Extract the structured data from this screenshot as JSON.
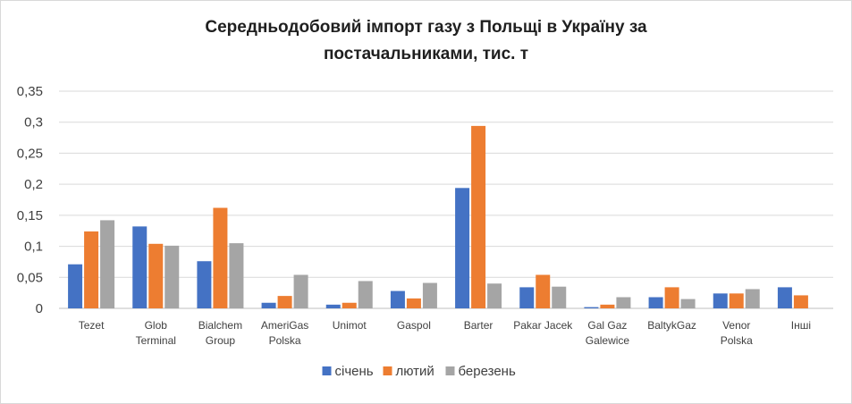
{
  "chart_data": {
    "type": "bar",
    "title_lines": [
      "Середньодобовий імпорт газу з Польщі в Україну за",
      "постачальниками, тис. т"
    ],
    "xlabel": "",
    "ylabel": "",
    "ylim": [
      0,
      0.35
    ],
    "yticks": [
      "0",
      "0,05",
      "0,1",
      "0,15",
      "0,2",
      "0,25",
      "0,3",
      "0,35"
    ],
    "ytick_values": [
      0,
      0.05,
      0.1,
      0.15,
      0.2,
      0.25,
      0.3,
      0.35
    ],
    "grid": true,
    "legend_position": "bottom",
    "categories": [
      [
        "Tezet"
      ],
      [
        "Glob",
        "Terminal"
      ],
      [
        "Bialchem",
        "Group"
      ],
      [
        "AmeriGas",
        "Polska"
      ],
      [
        "Unimot"
      ],
      [
        "Gaspol"
      ],
      [
        "Barter"
      ],
      [
        "Pakar Jacek"
      ],
      [
        "Gal Gaz",
        "Galewice"
      ],
      [
        "BaltykGaz"
      ],
      [
        "Venor",
        "Polska"
      ],
      [
        "Інші"
      ]
    ],
    "series": [
      {
        "name": "січень",
        "color": "#4472c4",
        "values": [
          0.071,
          0.132,
          0.076,
          0.009,
          0.006,
          0.028,
          0.194,
          0.034,
          0.002,
          0.018,
          0.024,
          0.034
        ]
      },
      {
        "name": "лютий",
        "color": "#ed7d31",
        "values": [
          0.124,
          0.104,
          0.162,
          0.02,
          0.009,
          0.016,
          0.294,
          0.054,
          0.006,
          0.034,
          0.024,
          0.021
        ]
      },
      {
        "name": "березень",
        "color": "#a5a5a5",
        "values": [
          0.142,
          0.101,
          0.105,
          0.054,
          0.044,
          0.041,
          0.04,
          0.035,
          0.018,
          0.015,
          0.031,
          0.0
        ]
      }
    ]
  }
}
